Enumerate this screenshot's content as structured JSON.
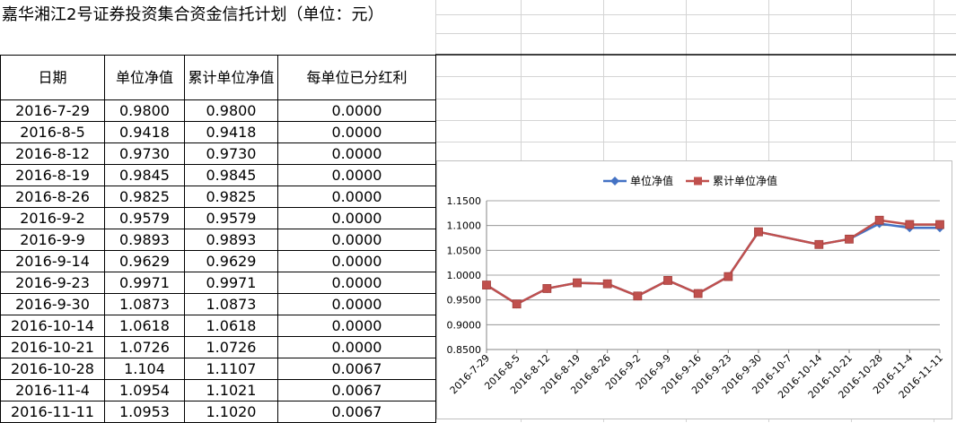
{
  "title": "嘉华湘江2号证券投资集合资金信托计划（单位：元）",
  "table": {
    "headers": [
      "日期",
      "单位净值",
      "累计单位净值",
      "每单位已分红利"
    ],
    "rows": [
      [
        "2016-7-29",
        "0.9800",
        "0.9800",
        "0.0000"
      ],
      [
        "2016-8-5",
        "0.9418",
        "0.9418",
        "0.0000"
      ],
      [
        "2016-8-12",
        "0.9730",
        "0.9730",
        "0.0000"
      ],
      [
        "2016-8-19",
        "0.9845",
        "0.9845",
        "0.0000"
      ],
      [
        "2016-8-26",
        "0.9825",
        "0.9825",
        "0.0000"
      ],
      [
        "2016-9-2",
        "0.9579",
        "0.9579",
        "0.0000"
      ],
      [
        "2016-9-9",
        "0.9893",
        "0.9893",
        "0.0000"
      ],
      [
        "2016-9-14",
        "0.9629",
        "0.9629",
        "0.0000"
      ],
      [
        "2016-9-23",
        "0.9971",
        "0.9971",
        "0.0000"
      ],
      [
        "2016-9-30",
        "1.0873",
        "1.0873",
        "0.0000"
      ],
      [
        "2016-10-14",
        "1.0618",
        "1.0618",
        "0.0000"
      ],
      [
        "2016-10-21",
        "1.0726",
        "1.0726",
        "0.0000"
      ],
      [
        "2016-10-28",
        "1.104",
        "1.1107",
        "0.0067"
      ],
      [
        "2016-11-4",
        "1.0954",
        "1.1021",
        "0.0067"
      ],
      [
        "2016-11-11",
        "1.0953",
        "1.1020",
        "0.0067"
      ]
    ]
  },
  "chart_data": {
    "type": "line",
    "categories": [
      "2016-7-29",
      "2016-8-5",
      "2016-8-12",
      "2016-8-19",
      "2016-8-26",
      "2016-9-2",
      "2016-9-9",
      "2016-9-16",
      "2016-9-23",
      "2016-9-30",
      "2016-10-7",
      "2016-10-14",
      "2016-10-21",
      "2016-10-28",
      "2016-11-4",
      "2016-11-11"
    ],
    "series": [
      {
        "name": "单位净值",
        "color": "#4472c4",
        "marker": "diamond",
        "points": [
          [
            0,
            0.98
          ],
          [
            1,
            0.9418
          ],
          [
            2,
            0.973
          ],
          [
            3,
            0.9845
          ],
          [
            4,
            0.9825
          ],
          [
            5,
            0.9579
          ],
          [
            6,
            0.9893
          ],
          [
            7,
            0.9629
          ],
          [
            8,
            0.9971
          ],
          [
            9,
            1.0873
          ],
          [
            11,
            1.0618
          ],
          [
            12,
            1.0726
          ],
          [
            13,
            1.104
          ],
          [
            14,
            1.0954
          ],
          [
            15,
            1.0953
          ]
        ]
      },
      {
        "name": "累计单位净值",
        "color": "#c0504d",
        "marker": "square",
        "points": [
          [
            0,
            0.98
          ],
          [
            1,
            0.9418
          ],
          [
            2,
            0.973
          ],
          [
            3,
            0.9845
          ],
          [
            4,
            0.9825
          ],
          [
            5,
            0.9579
          ],
          [
            6,
            0.9893
          ],
          [
            7,
            0.9629
          ],
          [
            8,
            0.9971
          ],
          [
            9,
            1.0873
          ],
          [
            11,
            1.0618
          ],
          [
            12,
            1.0726
          ],
          [
            13,
            1.1107
          ],
          [
            14,
            1.1021
          ],
          [
            15,
            1.102
          ]
        ]
      }
    ],
    "ylim": [
      0.85,
      1.15
    ],
    "yticks": [
      "0.8500",
      "0.9000",
      "0.9500",
      "1.0000",
      "1.0500",
      "1.1000",
      "1.1500"
    ],
    "grid": true,
    "legend": "top"
  }
}
